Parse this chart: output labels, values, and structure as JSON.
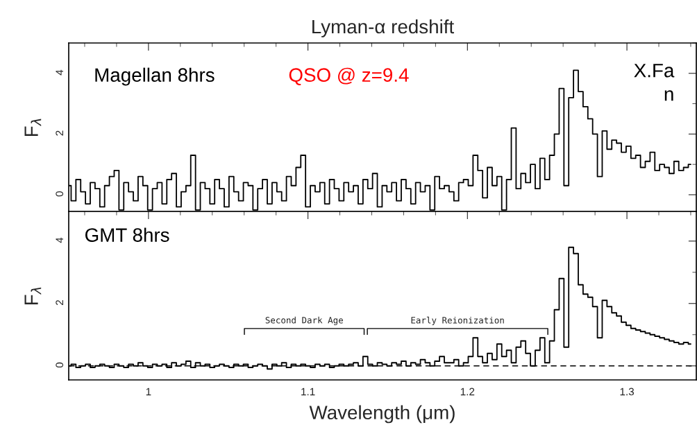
{
  "chart_data": [
    {
      "type": "step",
      "title": "Lyman-α redshift",
      "ylabel": "F$_{λ}$",
      "annotations": [
        {
          "text": "Magellan 8hrs"
        },
        {
          "text": "QSO @ z=9.4"
        },
        {
          "text": "X.Fa\nn"
        }
      ],
      "x": [
        0.95,
        0.953,
        0.956,
        0.959,
        0.962,
        0.965,
        0.968,
        0.971,
        0.974,
        0.977,
        0.98,
        0.983,
        0.986,
        0.989,
        0.992,
        0.995,
        0.998,
        1.001,
        1.004,
        1.007,
        1.01,
        1.013,
        1.016,
        1.019,
        1.022,
        1.025,
        1.028,
        1.031,
        1.034,
        1.037,
        1.04,
        1.043,
        1.046,
        1.049,
        1.052,
        1.055,
        1.058,
        1.061,
        1.064,
        1.067,
        1.07,
        1.073,
        1.076,
        1.079,
        1.082,
        1.085,
        1.088,
        1.091,
        1.094,
        1.097,
        1.1,
        1.103,
        1.106,
        1.109,
        1.112,
        1.115,
        1.118,
        1.121,
        1.124,
        1.127,
        1.13,
        1.133,
        1.136,
        1.139,
        1.142,
        1.145,
        1.148,
        1.151,
        1.154,
        1.157,
        1.16,
        1.163,
        1.166,
        1.169,
        1.172,
        1.175,
        1.178,
        1.181,
        1.184,
        1.187,
        1.19,
        1.193,
        1.196,
        1.199,
        1.202,
        1.205,
        1.208,
        1.211,
        1.214,
        1.217,
        1.22,
        1.223,
        1.226,
        1.229,
        1.232,
        1.235,
        1.238,
        1.241,
        1.244,
        1.247,
        1.25,
        1.253,
        1.256,
        1.259,
        1.262,
        1.265,
        1.268,
        1.271,
        1.274,
        1.277,
        1.28,
        1.283,
        1.286,
        1.289,
        1.292,
        1.295,
        1.298,
        1.301,
        1.304,
        1.307,
        1.31,
        1.313,
        1.316,
        1.319,
        1.322,
        1.325,
        1.328,
        1.331,
        1.334,
        1.337,
        1.34
      ],
      "series": [
        {
          "color": "#000000",
          "values": [
            0.3,
            -0.2,
            0.5,
            0.1,
            -0.3,
            0.4,
            0.2,
            -0.4,
            0.3,
            0.6,
            0.8,
            -0.5,
            0.4,
            0.1,
            -0.2,
            0.6,
            0.3,
            -0.5,
            0.2,
            0.4,
            -0.3,
            0.5,
            0.7,
            -0.4,
            0.1,
            0.3,
            1.3,
            -0.5,
            0.4,
            0.2,
            -0.3,
            0.5,
            0.2,
            -0.4,
            0.6,
            0.1,
            -0.2,
            0.4,
            0.3,
            -0.5,
            0.2,
            0.5,
            -0.3,
            0.4,
            0.1,
            -0.2,
            0.6,
            0.3,
            0.9,
            1.3,
            -0.4,
            0.3,
            0.1,
            0.4,
            -0.3,
            0.5,
            0.2,
            -0.2,
            0.4,
            0.1,
            0.3,
            -0.3,
            0.5,
            0.2,
            0.7,
            -0.4,
            0.3,
            0.1,
            0.4,
            -0.2,
            0.5,
            0.2,
            -0.3,
            0.4,
            0.1,
            0.3,
            -0.5,
            0.6,
            0.2,
            0.3,
            0.1,
            -0.2,
            0.4,
            0.5,
            0.3,
            1.3,
            0.8,
            -0.1,
            0.9,
            0.3,
            0.6,
            -0.5,
            0.5,
            2.2,
            0.2,
            0.7,
            0.4,
            1.0,
            0.2,
            1.2,
            0.5,
            1.3,
            2.0,
            3.5,
            0.3,
            3.2,
            4.1,
            3.4,
            2.9,
            2.5,
            2.0,
            0.6,
            2.1,
            1.5,
            1.8,
            1.7,
            1.4,
            1.6,
            1.2,
            1.3,
            0.9,
            1.1,
            1.4,
            0.8,
            1.0,
            0.9,
            0.7,
            1.1,
            0.8,
            0.9,
            1.0
          ]
        }
      ],
      "xlim": [
        0.95,
        1.3435
      ],
      "xticks": [
        1,
        1.1,
        1.2,
        1.3
      ],
      "ylim": [
        -0.55,
        5.0
      ],
      "yticks": [
        0,
        2,
        4
      ],
      "tick_labels": "y"
    },
    {
      "type": "step",
      "ylabel": "F$_{λ}$",
      "xlabel": "Wavelength (μm)",
      "annotations": [
        {
          "text": "GMT 8hrs"
        },
        {
          "text": "Second Dark Age"
        },
        {
          "text": "Early Reionization"
        }
      ],
      "ref_lines": [
        {
          "axis": "y",
          "value": 0,
          "line_style": "dashed"
        }
      ],
      "x": [
        0.95,
        0.953,
        0.956,
        0.959,
        0.962,
        0.965,
        0.968,
        0.971,
        0.974,
        0.977,
        0.98,
        0.983,
        0.986,
        0.989,
        0.992,
        0.995,
        0.998,
        1.001,
        1.004,
        1.007,
        1.01,
        1.013,
        1.016,
        1.019,
        1.022,
        1.025,
        1.028,
        1.031,
        1.034,
        1.037,
        1.04,
        1.043,
        1.046,
        1.049,
        1.052,
        1.055,
        1.058,
        1.061,
        1.064,
        1.067,
        1.07,
        1.073,
        1.076,
        1.079,
        1.082,
        1.085,
        1.088,
        1.091,
        1.094,
        1.097,
        1.1,
        1.103,
        1.106,
        1.109,
        1.112,
        1.115,
        1.118,
        1.121,
        1.124,
        1.127,
        1.13,
        1.133,
        1.136,
        1.139,
        1.142,
        1.145,
        1.148,
        1.151,
        1.154,
        1.157,
        1.16,
        1.163,
        1.166,
        1.169,
        1.172,
        1.175,
        1.178,
        1.181,
        1.184,
        1.187,
        1.19,
        1.193,
        1.196,
        1.199,
        1.202,
        1.205,
        1.208,
        1.211,
        1.214,
        1.217,
        1.22,
        1.223,
        1.226,
        1.229,
        1.232,
        1.235,
        1.238,
        1.241,
        1.244,
        1.247,
        1.25,
        1.253,
        1.256,
        1.259,
        1.262,
        1.265,
        1.268,
        1.271,
        1.274,
        1.277,
        1.28,
        1.283,
        1.286,
        1.289,
        1.292,
        1.295,
        1.298,
        1.301,
        1.304,
        1.307,
        1.31,
        1.313,
        1.316,
        1.319,
        1.322,
        1.325,
        1.328,
        1.331,
        1.334,
        1.337,
        1.34
      ],
      "series": [
        {
          "color": "#000000",
          "values": [
            0.0,
            0.05,
            -0.05,
            0.0,
            0.05,
            -0.05,
            0.0,
            0.05,
            0.0,
            -0.05,
            0.05,
            0.0,
            -0.05,
            0.05,
            0.0,
            0.1,
            0.0,
            -0.05,
            0.05,
            0.0,
            0.05,
            -0.05,
            0.1,
            0.0,
            0.05,
            0.15,
            -0.05,
            0.1,
            0.0,
            0.05,
            -0.05,
            0.0,
            0.05,
            0.0,
            -0.05,
            0.05,
            0.0,
            0.05,
            -0.05,
            0.0,
            0.05,
            0.0,
            -0.1,
            0.05,
            0.0,
            0.1,
            -0.05,
            0.05,
            0.0,
            0.05,
            0.0,
            -0.05,
            0.05,
            0.0,
            0.05,
            -0.05,
            0.0,
            0.05,
            0.0,
            0.05,
            0.1,
            0.0,
            0.3,
            0.05,
            0.0,
            0.1,
            0.05,
            0.0,
            0.1,
            0.05,
            0.15,
            0.0,
            0.1,
            0.05,
            0.2,
            0.1,
            0.0,
            0.15,
            0.3,
            0.1,
            0.1,
            0.2,
            0.0,
            0.1,
            0.3,
            0.9,
            0.3,
            0.1,
            0.4,
            0.2,
            0.7,
            0.3,
            0.5,
            0.1,
            0.6,
            0.8,
            0.4,
            0.0,
            0.5,
            0.9,
            0.1,
            0.8,
            1.8,
            2.8,
            0.6,
            3.8,
            3.6,
            2.6,
            2.3,
            2.2,
            1.9,
            0.9,
            2.1,
            1.9,
            1.7,
            1.6,
            1.4,
            1.3,
            1.2,
            1.15,
            1.1,
            1.05,
            1.0,
            0.95,
            0.9,
            0.85,
            0.8,
            0.75,
            0.7,
            0.75,
            0.7
          ]
        }
      ],
      "xlim": [
        0.95,
        1.3435
      ],
      "xticks": [
        1,
        1.1,
        1.2,
        1.3
      ],
      "ylim": [
        -0.45,
        4.95
      ],
      "yticks": [
        0,
        2,
        4
      ]
    }
  ]
}
